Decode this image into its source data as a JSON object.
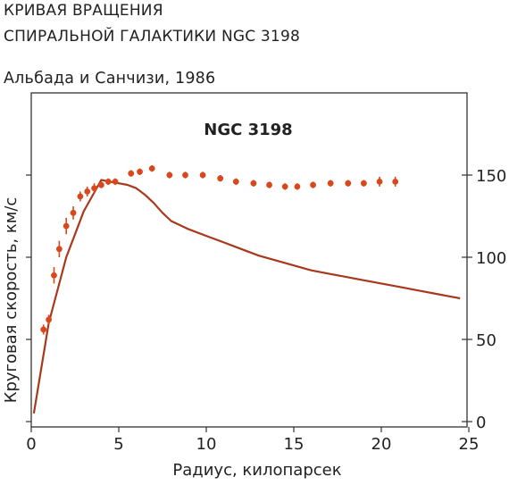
{
  "header": {
    "title_line1": "КРИВАЯ ВРАЩЕНИЯ",
    "title_line2": "СПИРАЛЬНОЙ ГАЛАКТИКИ NGC 3198",
    "source": "Альбада и Санчизи, 1986"
  },
  "chart_data": {
    "type": "scatter",
    "title": "NGC 3198",
    "xlabel": "Радиус, килопарсек",
    "ylabel": "Круговая скорость, км/с",
    "xlim": [
      0,
      25
    ],
    "ylim": [
      0,
      160
    ],
    "x_ticks": [
      0,
      5,
      10,
      15,
      20,
      25
    ],
    "y_ticks": [
      0,
      50,
      100,
      150
    ],
    "grid": false,
    "colors": {
      "observed": "#d9481c",
      "model": "#a8381c",
      "frame": "#333333"
    },
    "series": [
      {
        "kind": "points_with_error_bars",
        "x": [
          0.7,
          1.0,
          1.3,
          1.6,
          2.0,
          2.4,
          2.8,
          3.2,
          3.6,
          4.0,
          4.4,
          4.8,
          5.7,
          6.2,
          6.9,
          7.9,
          8.8,
          9.8,
          10.8,
          11.7,
          12.7,
          13.6,
          14.5,
          15.2,
          16.1,
          17.1,
          18.1,
          19.0,
          19.9,
          20.8
        ],
        "y": [
          56,
          62,
          89,
          105,
          119,
          127,
          137,
          140,
          142,
          144,
          146,
          146,
          151,
          152,
          154,
          150,
          150,
          150,
          148,
          146,
          145,
          144,
          143,
          143,
          144,
          145,
          145,
          145,
          146,
          146
        ],
        "error": [
          3,
          3,
          5,
          5,
          5,
          4,
          3,
          3,
          3,
          2,
          2,
          2,
          2,
          2,
          2,
          2,
          2,
          2,
          2,
          2,
          2,
          2,
          2,
          2,
          2,
          2,
          2,
          2,
          3,
          3
        ]
      },
      {
        "kind": "line",
        "x": [
          0.15,
          1.0,
          2.0,
          3.0,
          4.0,
          4.5,
          5.0,
          5.5,
          6.0,
          6.5,
          7.0,
          7.5,
          8.0,
          9.0,
          10.0,
          11.0,
          12.0,
          13.0,
          14.0,
          15.0,
          16.0,
          17.0,
          18.0,
          19.0,
          20.0,
          21.0,
          22.0,
          23.0,
          24.0,
          24.5
        ],
        "y": [
          5,
          60,
          100,
          128,
          147,
          146,
          145,
          144,
          142,
          138,
          133,
          127,
          122,
          117,
          113,
          109,
          105,
          101,
          98,
          95,
          92,
          90,
          88,
          86,
          84,
          82,
          80,
          78,
          76,
          75
        ]
      }
    ]
  }
}
